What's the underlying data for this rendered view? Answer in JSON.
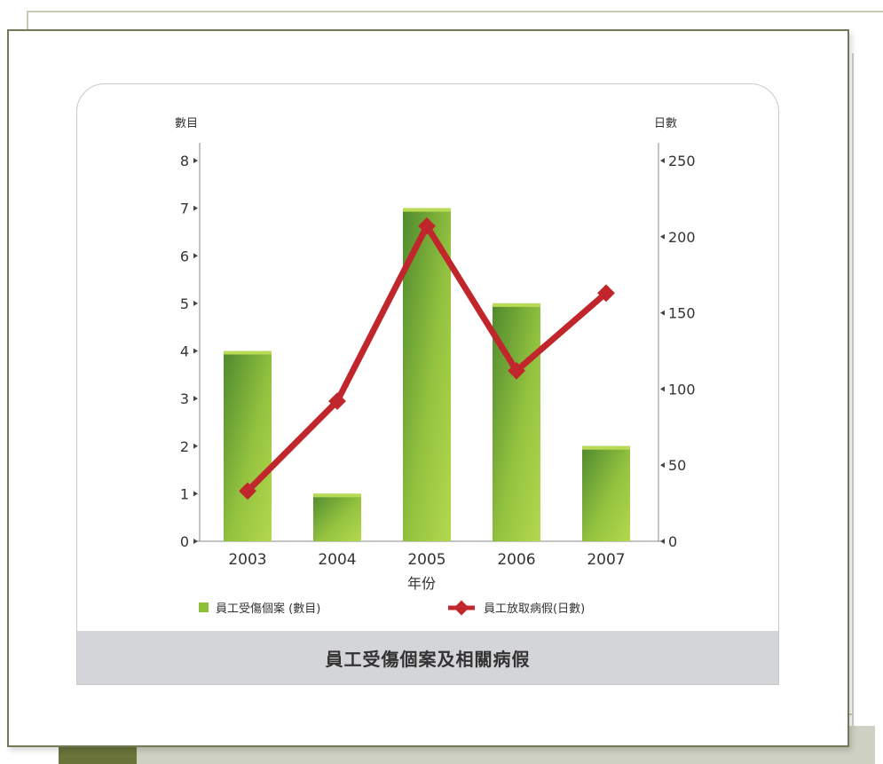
{
  "chart_data": {
    "type": "bar",
    "title": "員工受傷個案及相關病假",
    "xlabel": "年份",
    "categories": [
      "2003",
      "2004",
      "2005",
      "2006",
      "2007"
    ],
    "left_axis": {
      "label": "數目",
      "ylim": [
        0,
        8
      ],
      "ticks": [
        "0",
        "1",
        "2",
        "3",
        "4",
        "5",
        "6",
        "7",
        "8"
      ]
    },
    "right_axis": {
      "label": "日數",
      "ylim": [
        0,
        250
      ],
      "ticks": [
        "0",
        "50",
        "100",
        "150",
        "200",
        "250"
      ]
    },
    "series": [
      {
        "name": "員工受傷個案 (數目)",
        "type": "bar",
        "axis": "left",
        "values": [
          4,
          1,
          7,
          5,
          2
        ],
        "color": "#7fb33a"
      },
      {
        "name": "員工放取病假(日數)",
        "type": "line",
        "axis": "right",
        "values": [
          33,
          92,
          207,
          112,
          163
        ],
        "color": "#c0262b"
      }
    ],
    "grid": false,
    "legend": "bottom"
  },
  "colors": {
    "bar_light": "#a8cf45",
    "bar_dark": "#4e8a2e",
    "line": "#c0262b",
    "axis": "#555555"
  }
}
